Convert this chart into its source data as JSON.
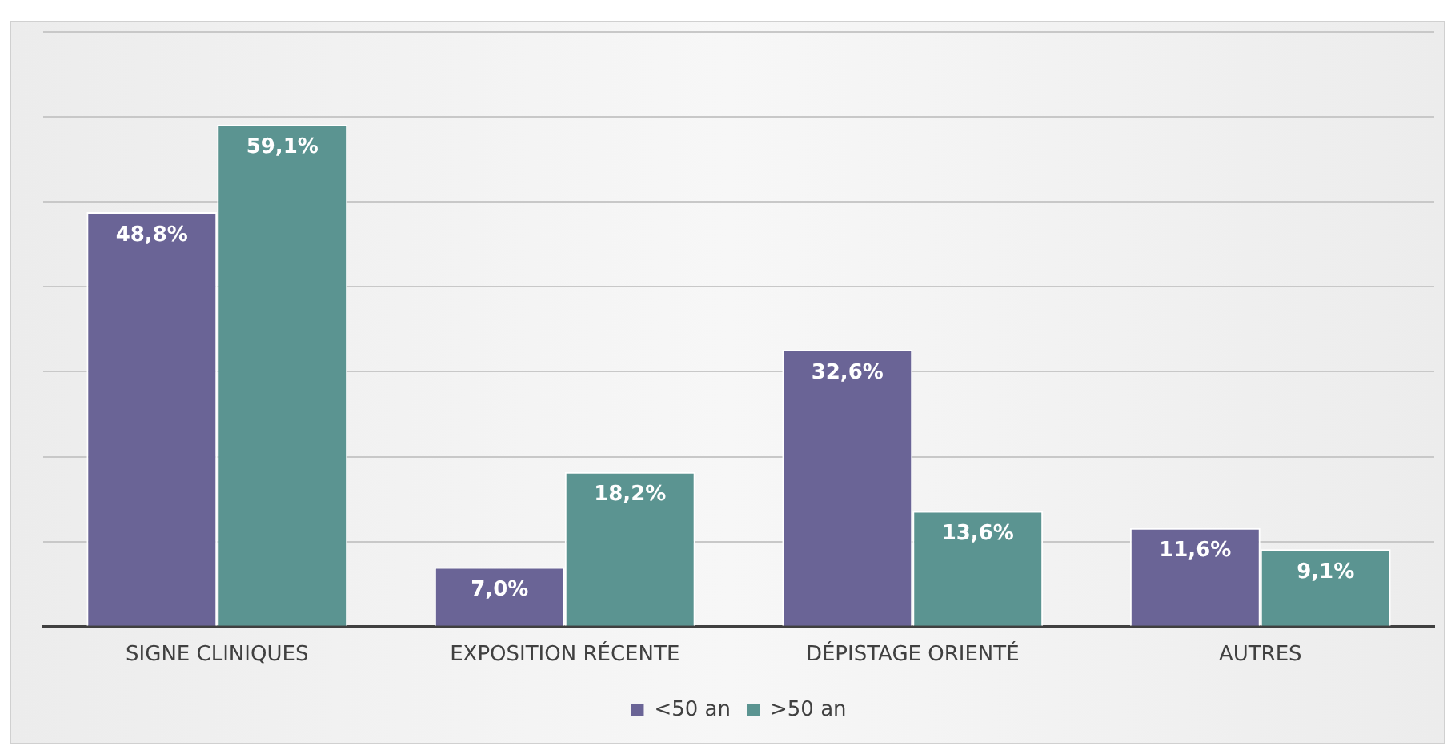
{
  "chart_data": {
    "type": "bar",
    "categories": [
      "SIGNE CLINIQUES",
      "EXPOSITION RÉCENTE",
      "DÉPISTAGE ORIENTÉ",
      "AUTRES"
    ],
    "series": [
      {
        "name": "<50 an",
        "color": "#6a6496",
        "values": [
          48.8,
          7.0,
          32.6,
          11.6
        ],
        "value_labels": [
          "48,8%",
          "7,0%",
          "32,6%",
          "11,6%"
        ]
      },
      {
        "name": ">50 an",
        "color": "#5b9491",
        "values": [
          59.1,
          18.2,
          13.6,
          9.1
        ],
        "value_labels": [
          "59,1%",
          "18,2%",
          "13,6%",
          "9,1%"
        ]
      }
    ],
    "ylim": [
      0,
      70
    ],
    "yticks": [
      0,
      {
        "value": 10,
        "label": null
      },
      {
        "value": 20,
        "label": null
      },
      {
        "value": 30,
        "label": null
      },
      {
        "value": 40,
        "label": null
      },
      {
        "value": 50,
        "label": null
      },
      {
        "value": 60,
        "label": null
      },
      {
        "value": 70,
        "label": null
      }
    ],
    "tick_labels": "x",
    "grid": "y",
    "legend": "bottom"
  }
}
